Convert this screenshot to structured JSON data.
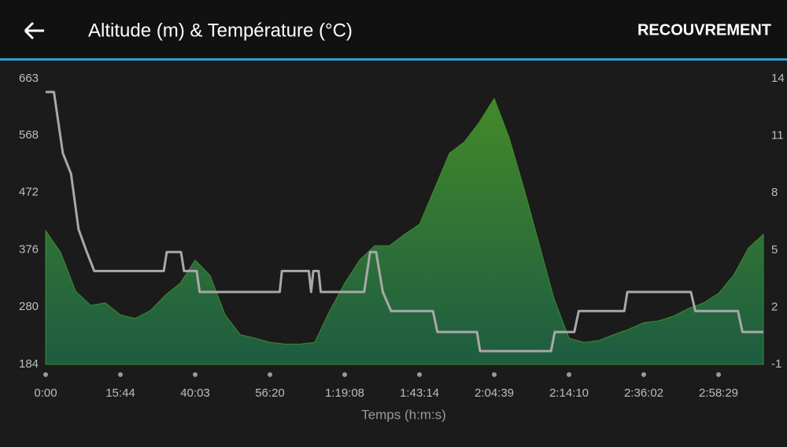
{
  "header": {
    "title": "Altitude (m) & Température (°C)",
    "action": "RECOUVREMENT"
  },
  "chart_data": {
    "type": "area-line",
    "xlabel": "Temps (h:m:s)",
    "xlim": [
      0,
      9.6
    ],
    "xticks": [
      {
        "value": 0,
        "label": "0:00"
      },
      {
        "value": 1,
        "label": "15:44"
      },
      {
        "value": 2,
        "label": "40:03"
      },
      {
        "value": 3,
        "label": "56:20"
      },
      {
        "value": 4,
        "label": "1:19:08"
      },
      {
        "value": 5,
        "label": "1:43:14"
      },
      {
        "value": 6,
        "label": "2:04:39"
      },
      {
        "value": 7,
        "label": "2:14:10"
      },
      {
        "value": 8,
        "label": "2:36:02"
      },
      {
        "value": 9,
        "label": "2:58:29"
      }
    ],
    "ylim": [
      184,
      663
    ],
    "yticks": [
      184,
      280,
      376,
      472,
      568,
      663
    ],
    "y2lim": [
      -1,
      14
    ],
    "y2ticks": [
      -1,
      2,
      5,
      8,
      11,
      14
    ],
    "series": [
      {
        "type": "area",
        "color": "#3f8a2c",
        "x": [
          0,
          0.2,
          0.4,
          0.6,
          0.8,
          1,
          1.2,
          1.4,
          1.6,
          1.8,
          2,
          2.2,
          2.4,
          2.6,
          2.8,
          3,
          3.2,
          3.4,
          3.6,
          3.8,
          4,
          4.2,
          4.4,
          4.6,
          4.8,
          5,
          5.2,
          5.4,
          5.6,
          5.8,
          6,
          6.2,
          6.4,
          6.6,
          6.8,
          7,
          7.2,
          7.4,
          7.6,
          7.8,
          8,
          8.2,
          8.4,
          8.6,
          8.8,
          9,
          9.2,
          9.4,
          9.6
        ],
        "values": [
          408,
          372,
          307,
          283,
          287,
          267,
          261,
          274,
          300,
          320,
          359,
          333,
          267,
          234,
          228,
          221,
          218,
          218,
          221,
          274,
          320,
          359,
          383,
          383,
          402,
          419,
          478,
          538,
          557,
          590,
          630,
          564,
          478,
          386,
          294,
          228,
          221,
          224,
          234,
          243,
          254,
          257,
          265,
          278,
          287,
          303,
          333,
          379,
          402
        ]
      },
      {
        "type": "line",
        "axis": "y2",
        "color": "#a8a8a8",
        "x": [
          0,
          0.11,
          0.23,
          0.34,
          0.44,
          0.55,
          0.65,
          1.58,
          1.62,
          1.81,
          1.85,
          2.02,
          2.06,
          3.13,
          3.16,
          3.52,
          3.55,
          3.58,
          3.65,
          3.68,
          4.26,
          4.34,
          4.42,
          4.51,
          4.62,
          5.18,
          5.24,
          5.77,
          5.81,
          6.76,
          6.81,
          7.07,
          7.13,
          7.74,
          7.78,
          8.63,
          8.69,
          9.26,
          9.32,
          9.6
        ],
        "values": [
          13.3,
          13.3,
          10.1,
          9.0,
          6.1,
          4.9,
          3.9,
          3.9,
          4.9,
          4.9,
          3.9,
          3.9,
          2.8,
          2.8,
          3.9,
          3.9,
          2.8,
          3.9,
          3.9,
          2.8,
          2.8,
          4.9,
          4.9,
          2.8,
          1.8,
          1.8,
          0.7,
          0.7,
          -0.3,
          -0.3,
          0.7,
          0.7,
          1.8,
          1.8,
          2.8,
          2.8,
          1.8,
          1.8,
          0.7,
          0.7
        ]
      }
    ]
  }
}
